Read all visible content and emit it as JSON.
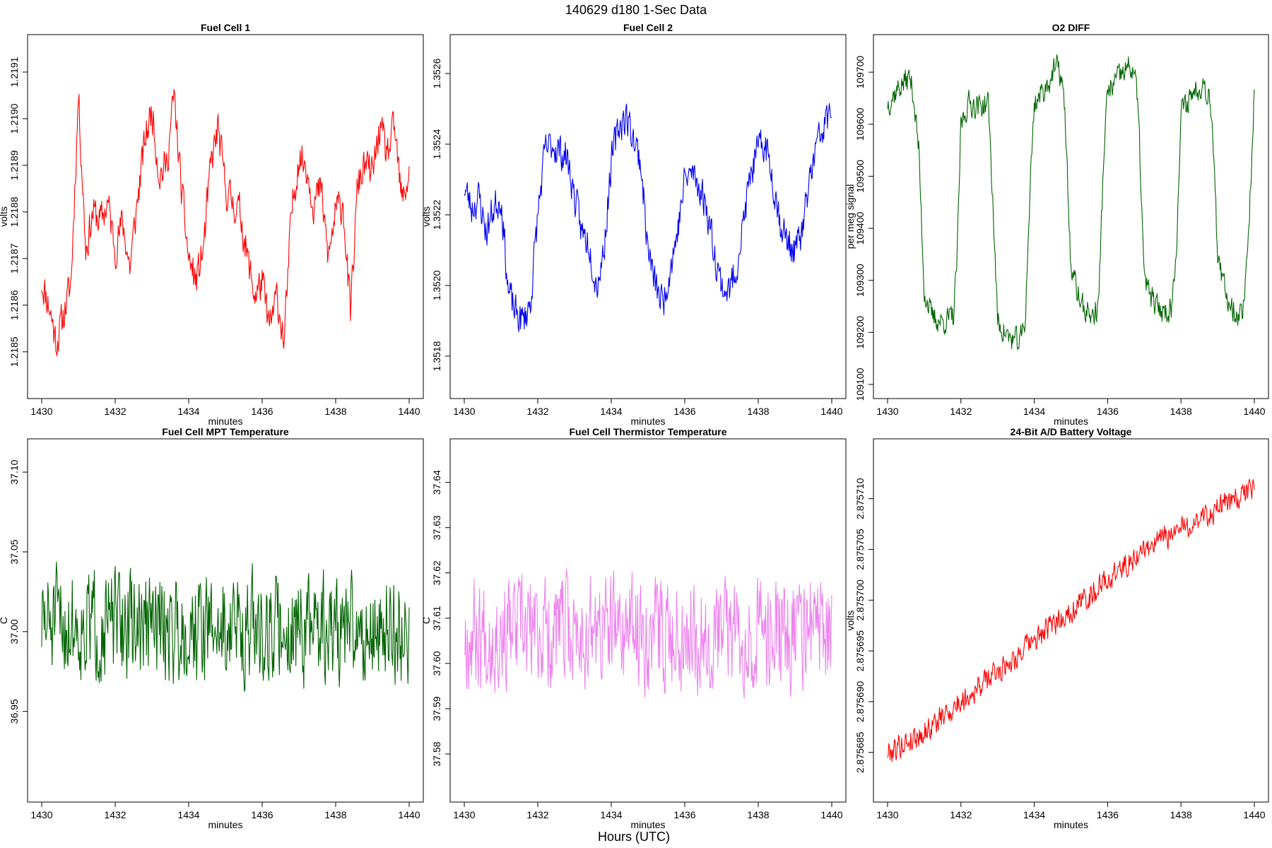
{
  "page": {
    "suptitle": "140629   d180   1-Sec Data",
    "bottom_label": "Hours (UTC)"
  },
  "chart_data": [
    {
      "type": "line",
      "title": "Fuel Cell 1",
      "xlabel": "minutes",
      "ylabel": "volts",
      "color": "#ff0000",
      "xlim": [
        1430,
        1440
      ],
      "ylim": [
        1.21843,
        1.21915
      ],
      "x_ticks": [
        "1430",
        "1432",
        "1434",
        "1436",
        "1438",
        "1440"
      ],
      "y_ticks": [
        "1.2185",
        "1.2186",
        "1.2187",
        "1.2188",
        "1.2189",
        "1.2190",
        "1.2191"
      ],
      "x": [
        1430.0,
        1430.2,
        1430.4,
        1430.6,
        1430.8,
        1430.9,
        1431.0,
        1431.2,
        1431.4,
        1431.6,
        1431.8,
        1432.0,
        1432.2,
        1432.4,
        1432.6,
        1432.8,
        1433.0,
        1433.2,
        1433.4,
        1433.6,
        1433.8,
        1434.0,
        1434.2,
        1434.4,
        1434.6,
        1434.8,
        1435.0,
        1435.2,
        1435.4,
        1435.6,
        1435.8,
        1436.0,
        1436.2,
        1436.4,
        1436.6,
        1436.8,
        1437.0,
        1437.2,
        1437.4,
        1437.6,
        1437.8,
        1438.0,
        1438.2,
        1438.4,
        1438.6,
        1438.8,
        1439.0,
        1439.2,
        1439.4,
        1439.6,
        1439.8,
        1440.0
      ],
      "y": [
        1.21865,
        1.2186,
        1.21852,
        1.21858,
        1.21865,
        1.21885,
        1.21905,
        1.21872,
        1.2188,
        1.21878,
        1.21882,
        1.21872,
        1.21878,
        1.21868,
        1.21882,
        1.21895,
        1.21902,
        1.21888,
        1.2189,
        1.21905,
        1.21885,
        1.2187,
        1.21865,
        1.21872,
        1.2189,
        1.21898,
        1.21885,
        1.21882,
        1.2188,
        1.2187,
        1.21862,
        1.21865,
        1.21855,
        1.21862,
        1.21852,
        1.2188,
        1.21892,
        1.2189,
        1.21882,
        1.21885,
        1.2187,
        1.2188,
        1.21882,
        1.21858,
        1.21886,
        1.2189,
        1.21888,
        1.21898,
        1.21892,
        1.21898,
        1.21882,
        1.21888
      ],
      "noise": 3.5e-05,
      "seed": 11
    },
    {
      "type": "line",
      "title": "Fuel Cell 2",
      "xlabel": "minutes",
      "ylabel": "volts",
      "color": "#0000ee",
      "xlim": [
        1430,
        1440
      ],
      "ylim": [
        1.35172,
        1.35267
      ],
      "x_ticks": [
        "1430",
        "1432",
        "1434",
        "1436",
        "1438",
        "1440"
      ],
      "y_ticks": [
        "1.3518",
        "1.3520",
        "1.3522",
        "1.3524",
        "1.3526"
      ],
      "x": [
        1430.0,
        1430.2,
        1430.4,
        1430.6,
        1430.8,
        1431.0,
        1431.2,
        1431.4,
        1431.6,
        1431.8,
        1432.0,
        1432.2,
        1432.4,
        1432.6,
        1432.8,
        1433.0,
        1433.2,
        1433.4,
        1433.6,
        1433.8,
        1434.0,
        1434.2,
        1434.4,
        1434.6,
        1434.8,
        1435.0,
        1435.2,
        1435.4,
        1435.6,
        1435.8,
        1436.0,
        1436.2,
        1436.4,
        1436.6,
        1436.8,
        1437.0,
        1437.2,
        1437.4,
        1437.6,
        1437.8,
        1438.0,
        1438.2,
        1438.4,
        1438.6,
        1438.8,
        1439.0,
        1439.2,
        1439.4,
        1439.6,
        1439.8,
        1440.0
      ],
      "y": [
        1.35228,
        1.35222,
        1.35225,
        1.35215,
        1.35222,
        1.35225,
        1.35198,
        1.35192,
        1.3519,
        1.35195,
        1.3522,
        1.35238,
        1.3524,
        1.35238,
        1.35236,
        1.35225,
        1.35215,
        1.35212,
        1.352,
        1.3521,
        1.35235,
        1.35245,
        1.35248,
        1.35242,
        1.35235,
        1.3521,
        1.352,
        1.35195,
        1.35205,
        1.35215,
        1.3523,
        1.35232,
        1.35228,
        1.35222,
        1.3521,
        1.352,
        1.35198,
        1.35205,
        1.35218,
        1.35232,
        1.35238,
        1.3524,
        1.3523,
        1.35218,
        1.35212,
        1.3521,
        1.35215,
        1.3523,
        1.3524,
        1.35245,
        1.3525
      ],
      "noise": 4.5e-05,
      "seed": 23
    },
    {
      "type": "line",
      "title": "O2 DIFF",
      "xlabel": "minutes",
      "ylabel": "per meg signal",
      "color": "#006400",
      "xlim": [
        1430,
        1440
      ],
      "ylim": [
        109100,
        109745
      ],
      "x_ticks": [
        "1430",
        "1432",
        "1434",
        "1436",
        "1438",
        "1440"
      ],
      "y_ticks": [
        "109100",
        "109200",
        "109300",
        "109400",
        "109500",
        "109600",
        "109700"
      ],
      "x": [
        1430.0,
        1430.3,
        1430.6,
        1430.7,
        1430.85,
        1431.0,
        1431.2,
        1431.5,
        1431.8,
        1431.9,
        1432.0,
        1432.2,
        1432.5,
        1432.75,
        1432.9,
        1433.0,
        1433.3,
        1433.6,
        1433.75,
        1433.9,
        1434.0,
        1434.3,
        1434.6,
        1434.75,
        1434.85,
        1435.0,
        1435.3,
        1435.6,
        1435.75,
        1435.9,
        1436.0,
        1436.3,
        1436.6,
        1436.75,
        1436.85,
        1437.0,
        1437.3,
        1437.6,
        1437.75,
        1437.9,
        1438.0,
        1438.3,
        1438.6,
        1438.8,
        1438.9,
        1439.0,
        1439.3,
        1439.6,
        1439.7,
        1439.85,
        1440.0
      ],
      "y": [
        109640,
        109670,
        109690,
        109660,
        109550,
        109280,
        109230,
        109220,
        109230,
        109350,
        109600,
        109640,
        109635,
        109640,
        109400,
        109220,
        109190,
        109180,
        109220,
        109500,
        109640,
        109670,
        109710,
        109690,
        109600,
        109320,
        109250,
        109230,
        109250,
        109550,
        109660,
        109690,
        109710,
        109700,
        109600,
        109300,
        109250,
        109240,
        109250,
        109400,
        109620,
        109660,
        109680,
        109650,
        109550,
        109330,
        109260,
        109230,
        109250,
        109400,
        109660
      ],
      "noise": 22,
      "seed": 37
    },
    {
      "type": "line",
      "title": "Fuel Cell MPT Temperature",
      "xlabel": "minutes",
      "ylabel": "C",
      "color": "#006400",
      "xlim": [
        1430,
        1440
      ],
      "ylim": [
        36.902,
        37.112
      ],
      "x_ticks": [
        "1430",
        "1432",
        "1434",
        "1436",
        "1438",
        "1440"
      ],
      "y_ticks": [
        "36.95",
        "37.00",
        "37.05",
        "37.10"
      ],
      "x": [
        1430,
        1440
      ],
      "y": [
        37.005,
        37.0
      ],
      "noise": 0.03,
      "seed": 51
    },
    {
      "type": "line",
      "title": "Fuel Cell Thermistor Temperature",
      "xlabel": "minutes",
      "ylabel": "C",
      "color": "#ee82ee",
      "xlim": [
        1430,
        1440
      ],
      "ylim": [
        37.5725,
        37.6465
      ],
      "x_ticks": [
        "1430",
        "1432",
        "1434",
        "1436",
        "1438",
        "1440"
      ],
      "y_ticks": [
        "37.58",
        "37.59",
        "37.60",
        "37.61",
        "37.62",
        "37.63",
        "37.64"
      ],
      "x": [
        1430,
        1440
      ],
      "y": [
        37.607,
        37.607
      ],
      "noise": 0.011,
      "seed": 67
    },
    {
      "type": "line",
      "title": "24-Bit A/D Battery Voltage",
      "xlabel": "minutes",
      "ylabel": "volts",
      "color": "#ff0000",
      "xlim": [
        1430,
        1440
      ],
      "ylim": [
        2.8756815,
        2.8757145
      ],
      "x_ticks": [
        "1430",
        "1432",
        "1434",
        "1436",
        "1438",
        "1440"
      ],
      "y_ticks": [
        "2.875685",
        "2.875690",
        "2.875695",
        "2.875700",
        "2.875705",
        "2.875710"
      ],
      "x": [
        1430.0,
        1431.0,
        1432.0,
        1433.0,
        1434.0,
        1435.0,
        1436.0,
        1437.0,
        1438.0,
        1439.0,
        1440.0
      ],
      "y": [
        2.875685,
        2.875687,
        2.87569,
        2.875693,
        2.875696,
        2.875699,
        2.875702,
        2.875705,
        2.875707,
        2.875709,
        2.875711
      ],
      "noise": 1.1e-06,
      "seed": 79
    }
  ]
}
